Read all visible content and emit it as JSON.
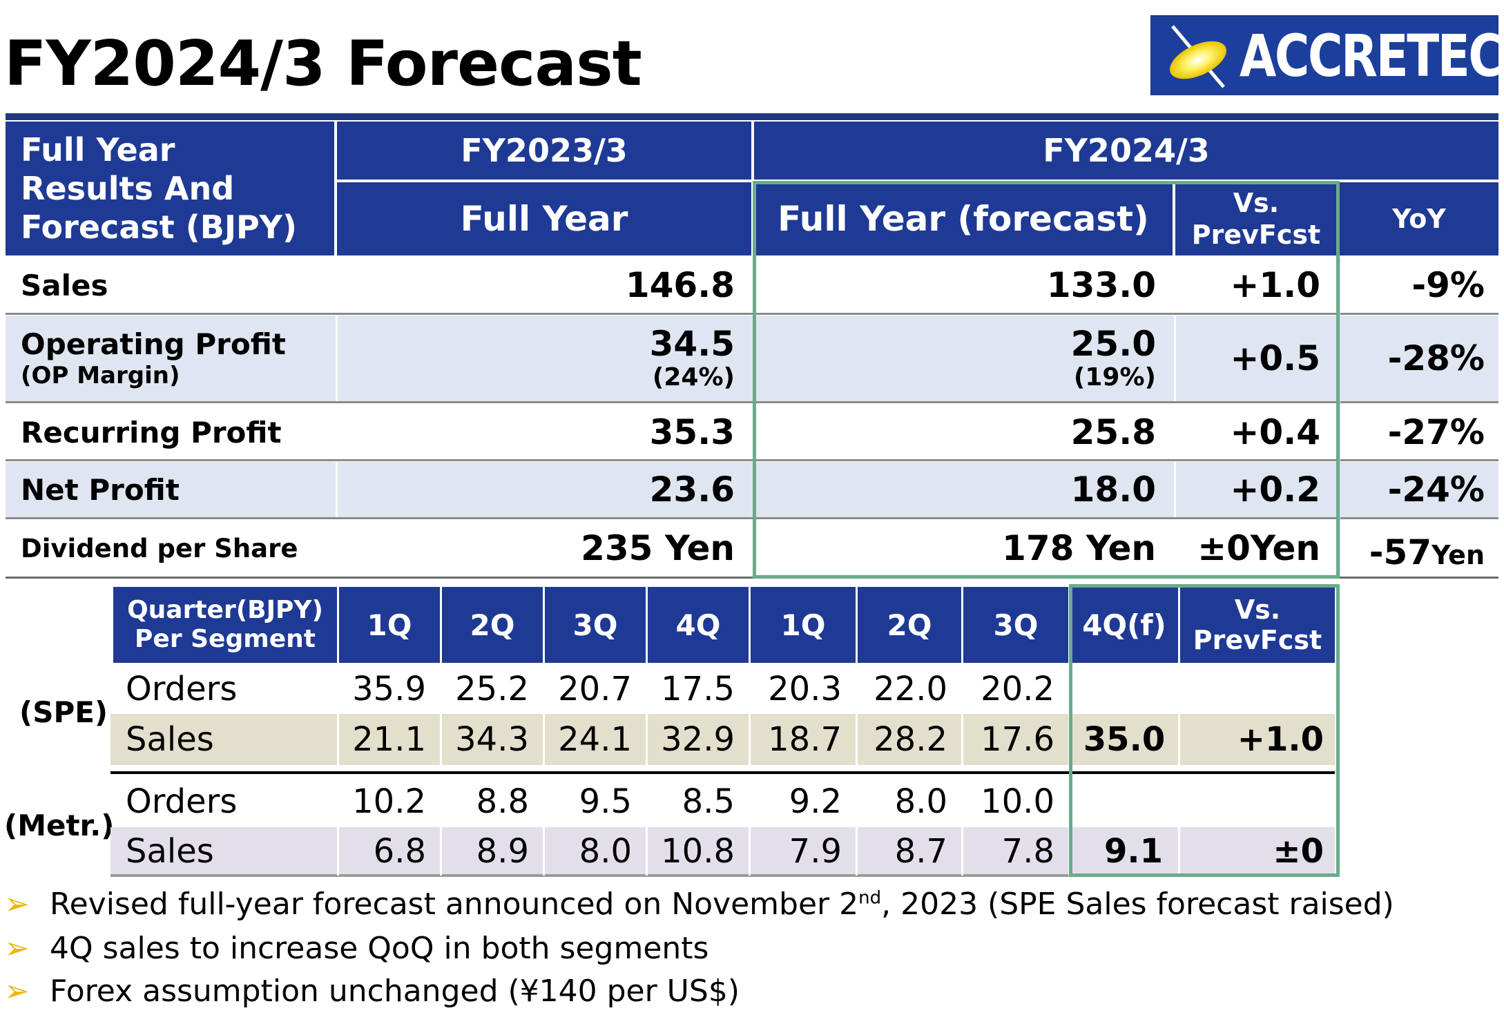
{
  "title": "FY2024/3 Forecast",
  "logo_text": "ACCRETECH",
  "brand_colors": {
    "navy": "#1f3a94",
    "highlight_green": "#6aab8b",
    "spe_row": "#e2dfcc",
    "metr_row": "#e3dfea",
    "light_blue_row": "#dfe5f1",
    "bullet": "#f0b400"
  },
  "full_year": {
    "header_label": "Full Year Results And Forecast (BJPY)",
    "fy2023": "FY2023/3",
    "fy2024": "FY2024/3",
    "col_full_year": "Full Year",
    "col_forecast": "Full Year (forecast)",
    "col_vs_line1": "Vs.",
    "col_vs_line2": "PrevFcst",
    "col_yoy": "YoY",
    "rows": [
      {
        "label": "Sales",
        "fy23": "146.8",
        "fy24": "133.0",
        "vs": "+1.0",
        "yoy": "-9%"
      },
      {
        "label": "Operating Profit",
        "sub": "(OP Margin)",
        "fy23": "34.5",
        "fy23_sub": "(24%)",
        "fy24": "25.0",
        "fy24_sub": "(19%)",
        "vs": "+0.5",
        "yoy": "-28%"
      },
      {
        "label": "Recurring Profit",
        "fy23": "35.3",
        "fy24": "25.8",
        "vs": "+0.4",
        "yoy": "-27%"
      },
      {
        "label": "Net Profit",
        "fy23": "23.6",
        "fy24": "18.0",
        "vs": "+0.2",
        "yoy": "-24%"
      },
      {
        "label": "Dividend per Share",
        "fy23": "235 Yen",
        "fy24": "178 Yen",
        "vs": "±0Yen",
        "yoy_num": "-57",
        "yoy_unit": "Yen"
      }
    ]
  },
  "quarter": {
    "header_line1": "Quarter(BJPY)",
    "header_line2": "Per Segment",
    "cols": [
      "1Q",
      "2Q",
      "3Q",
      "4Q",
      "1Q",
      "2Q",
      "3Q",
      "4Q(f)"
    ],
    "vs_line1": "Vs.",
    "vs_line2": "PrevFcst",
    "spe": {
      "label": "(SPE)",
      "orders_label": "Orders",
      "orders": [
        "35.9",
        "25.2",
        "20.7",
        "17.5",
        "20.3",
        "22.0",
        "20.2"
      ],
      "sales_label": "Sales",
      "sales": [
        "21.1",
        "34.3",
        "24.1",
        "32.9",
        "18.7",
        "28.2",
        "17.6"
      ],
      "sales_4qf": "35.0",
      "sales_vs": "+1.0"
    },
    "metr": {
      "label": "(Metr.)",
      "orders_label": "Orders",
      "orders": [
        "10.2",
        "8.8",
        "9.5",
        "8.5",
        "9.2",
        "8.0",
        "10.0"
      ],
      "sales_label": "Sales",
      "sales": [
        "6.8",
        "8.9",
        "8.0",
        "10.8",
        "7.9",
        "8.7",
        "7.8"
      ],
      "sales_4qf": "9.1",
      "sales_vs": "±0"
    }
  },
  "bullets": [
    {
      "pre": "Revised full-year forecast announced on November 2",
      "sup": "nd",
      "post": ", 2023 (SPE Sales forecast raised)"
    },
    {
      "pre": "4Q sales to increase QoQ in both segments"
    },
    {
      "pre": "Forex assumption unchanged (¥140 per US$)"
    }
  ]
}
